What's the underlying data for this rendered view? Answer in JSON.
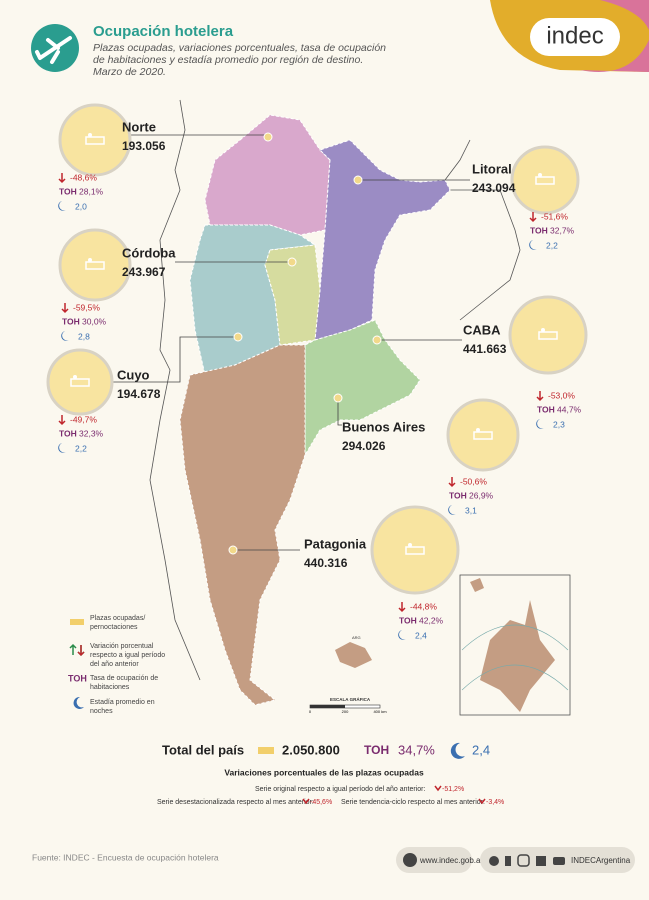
{
  "header": {
    "title": "Ocupación hotelera",
    "subtitle": [
      "Plazas ocupadas, variaciones porcentuales, tasa de ocupación",
      "de habitaciones y estadía promedio por región de destino.",
      "Marzo de 2020."
    ],
    "logo": "indec"
  },
  "regions": [
    {
      "name": "Norte",
      "plazas": "193.056",
      "variation": "-48,6%",
      "toh_label": "TOH",
      "toh": "28,1%",
      "stay": "2,0"
    },
    {
      "name": "Litoral",
      "plazas": "243.094",
      "variation": "-51,6%",
      "toh_label": "TOH",
      "toh": "32,7%",
      "stay": "2,2"
    },
    {
      "name": "Córdoba",
      "plazas": "243.967",
      "variation": "-59,5%",
      "toh_label": "TOH",
      "toh": "30,0%",
      "stay": "2,8"
    },
    {
      "name": "Cuyo",
      "plazas": "194.678",
      "variation": "-49,7%",
      "toh_label": "TOH",
      "toh": "32,3%",
      "stay": "2,2"
    },
    {
      "name": "CABA",
      "plazas": "441.663",
      "variation": "-53,0%",
      "toh_label": "TOH",
      "toh": "44,7%",
      "stay": "2,3"
    },
    {
      "name": "Buenos Aires",
      "plazas": "294.026",
      "variation": "-50,6%",
      "toh_label": "TOH",
      "toh": "26,9%",
      "stay": "3,1"
    },
    {
      "name": "Patagonia",
      "plazas": "440.316",
      "variation": "-44,8%",
      "toh_label": "TOH",
      "toh": "42,2%",
      "stay": "2,4"
    }
  ],
  "legend": {
    "plazas": [
      "Plazas ocupadas/",
      "pernoctaciones"
    ],
    "variation": [
      "Variación porcentual",
      "respecto a igual período",
      "del año anterior"
    ],
    "toh_label": "TOH",
    "toh": [
      "Tasa de ocupación de",
      "habitaciones"
    ],
    "stay": [
      "Estadía promedio en",
      "noches"
    ]
  },
  "scale": {
    "title": "ESCALA GRÁFICA",
    "ticks": [
      "0",
      "200",
      "400 km"
    ],
    "label": "ARG"
  },
  "total": {
    "label": "Total del país",
    "plazas": "2.050.800",
    "toh_label": "TOH",
    "toh": "34,7%",
    "stay": "2,4"
  },
  "variations": {
    "title": "Variaciones porcentuales de las plazas ocupadas",
    "original_label": "Serie original respecto a igual período del año anterior:",
    "original": "-51,2%",
    "deseason_label": "Serie desestacionalizada respecto al mes anterior:",
    "deseason": "-45,6%",
    "trend_label": "Serie tendencia-ciclo respecto al mes anterior:",
    "trend": "-3,4%"
  },
  "footer": {
    "source": "Fuente: INDEC - Encuesta de ocupación hotelera",
    "web": "www.indec.gob.ar",
    "social": "INDECArgentina"
  }
}
